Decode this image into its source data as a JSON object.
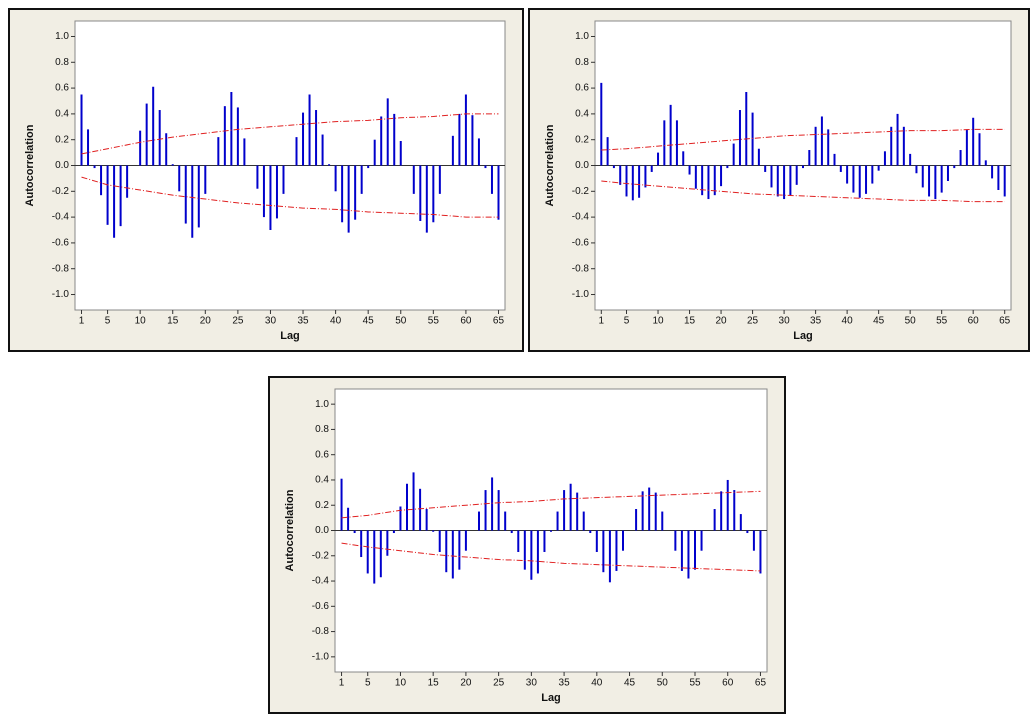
{
  "chart_data": [
    {
      "type": "acf",
      "x_label": "Lag",
      "y_label": "Autocorrelation",
      "color": "#0000cc",
      "limit_color": "#e02020",
      "x": [
        1,
        2,
        3,
        4,
        5,
        6,
        7,
        8,
        9,
        10,
        11,
        12,
        13,
        14,
        15,
        16,
        17,
        18,
        19,
        20,
        21,
        22,
        23,
        24,
        25,
        26,
        27,
        28,
        29,
        30,
        31,
        32,
        33,
        34,
        35,
        36,
        37,
        38,
        39,
        40,
        41,
        42,
        43,
        44,
        45,
        46,
        47,
        48,
        49,
        50,
        51,
        52,
        53,
        54,
        55,
        56,
        57,
        58,
        59,
        60,
        61,
        62,
        63,
        64,
        65
      ],
      "values": [
        0.55,
        0.28,
        -0.02,
        -0.23,
        -0.46,
        -0.56,
        -0.47,
        -0.25,
        0.0,
        0.27,
        0.48,
        0.61,
        0.43,
        0.25,
        0.01,
        -0.2,
        -0.45,
        -0.56,
        -0.48,
        -0.22,
        0.0,
        0.22,
        0.46,
        0.57,
        0.45,
        0.21,
        0.0,
        -0.18,
        -0.4,
        -0.5,
        -0.41,
        -0.22,
        0.0,
        0.22,
        0.41,
        0.55,
        0.43,
        0.24,
        0.01,
        -0.2,
        -0.44,
        -0.52,
        -0.42,
        -0.22,
        -0.02,
        0.2,
        0.38,
        0.52,
        0.4,
        0.19,
        0.0,
        -0.22,
        -0.43,
        -0.52,
        -0.44,
        -0.22,
        0.0,
        0.23,
        0.4,
        0.55,
        0.39,
        0.21,
        -0.02,
        -0.22,
        -0.42
      ],
      "limit_lags": [
        1,
        5,
        10,
        15,
        20,
        25,
        30,
        35,
        40,
        45,
        50,
        55,
        60,
        65
      ],
      "upper_limit": [
        0.09,
        0.13,
        0.18,
        0.22,
        0.25,
        0.28,
        0.3,
        0.32,
        0.34,
        0.35,
        0.37,
        0.38,
        0.4,
        0.4
      ],
      "lower_limit": [
        -0.09,
        -0.15,
        -0.19,
        -0.23,
        -0.26,
        -0.29,
        -0.31,
        -0.33,
        -0.34,
        -0.36,
        -0.37,
        -0.38,
        -0.4,
        -0.4
      ],
      "xlim": [
        0,
        66
      ],
      "xticks": [
        1,
        5,
        10,
        15,
        20,
        25,
        30,
        35,
        40,
        45,
        50,
        55,
        60,
        65
      ],
      "ylim": [
        -1.12,
        1.12
      ],
      "yticks": [
        {
          "value": 1.0,
          "label": "1.0"
        },
        0.8,
        0.6,
        0.4,
        0.2,
        {
          "value": 0.0,
          "label": "0.0"
        },
        -0.2,
        -0.4,
        -0.6,
        -0.8,
        {
          "value": -1.0,
          "label": "-1.0"
        }
      ]
    },
    {
      "type": "acf",
      "x_label": "Lag",
      "y_label": "Autocorrelation",
      "color": "#0000cc",
      "limit_color": "#e02020",
      "x": [
        1,
        2,
        3,
        4,
        5,
        6,
        7,
        8,
        9,
        10,
        11,
        12,
        13,
        14,
        15,
        16,
        17,
        18,
        19,
        20,
        21,
        22,
        23,
        24,
        25,
        26,
        27,
        28,
        29,
        30,
        31,
        32,
        33,
        34,
        35,
        36,
        37,
        38,
        39,
        40,
        41,
        42,
        43,
        44,
        45,
        46,
        47,
        48,
        49,
        50,
        51,
        52,
        53,
        54,
        55,
        56,
        57,
        58,
        59,
        60,
        61,
        62,
        63,
        64,
        65
      ],
      "values": [
        0.64,
        0.22,
        -0.02,
        -0.15,
        -0.24,
        -0.27,
        -0.25,
        -0.17,
        -0.05,
        0.1,
        0.35,
        0.47,
        0.35,
        0.11,
        -0.07,
        -0.18,
        -0.23,
        -0.26,
        -0.23,
        -0.16,
        -0.02,
        0.17,
        0.43,
        0.57,
        0.41,
        0.13,
        -0.05,
        -0.17,
        -0.24,
        -0.26,
        -0.23,
        -0.15,
        -0.02,
        0.12,
        0.3,
        0.38,
        0.28,
        0.09,
        -0.05,
        -0.14,
        -0.21,
        -0.25,
        -0.22,
        -0.14,
        -0.04,
        0.11,
        0.3,
        0.4,
        0.3,
        0.09,
        -0.06,
        -0.17,
        -0.24,
        -0.26,
        -0.21,
        -0.12,
        -0.02,
        0.12,
        0.28,
        0.37,
        0.25,
        0.04,
        -0.1,
        -0.19,
        -0.24
      ],
      "limit_lags": [
        1,
        5,
        10,
        15,
        20,
        25,
        30,
        35,
        40,
        45,
        50,
        55,
        60,
        65
      ],
      "upper_limit": [
        0.12,
        0.13,
        0.15,
        0.17,
        0.19,
        0.21,
        0.23,
        0.24,
        0.25,
        0.26,
        0.27,
        0.27,
        0.28,
        0.28
      ],
      "lower_limit": [
        -0.12,
        -0.14,
        -0.16,
        -0.18,
        -0.2,
        -0.22,
        -0.23,
        -0.24,
        -0.25,
        -0.26,
        -0.27,
        -0.27,
        -0.28,
        -0.28
      ],
      "xlim": [
        0,
        66
      ],
      "xticks": [
        1,
        5,
        10,
        15,
        20,
        25,
        30,
        35,
        40,
        45,
        50,
        55,
        60,
        65
      ],
      "ylim": [
        -1.12,
        1.12
      ],
      "yticks": [
        {
          "value": 1.0,
          "label": "1.0"
        },
        0.8,
        0.6,
        0.4,
        0.2,
        {
          "value": 0.0,
          "label": "0.0"
        },
        -0.2,
        -0.4,
        -0.6,
        -0.8,
        {
          "value": -1.0,
          "label": "-1.0"
        }
      ]
    },
    {
      "type": "acf",
      "x_label": "Lag",
      "y_label": "Autocorrelation",
      "color": "#0000cc",
      "limit_color": "#e02020",
      "x": [
        1,
        2,
        3,
        4,
        5,
        6,
        7,
        8,
        9,
        10,
        11,
        12,
        13,
        14,
        15,
        16,
        17,
        18,
        19,
        20,
        21,
        22,
        23,
        24,
        25,
        26,
        27,
        28,
        29,
        30,
        31,
        32,
        33,
        34,
        35,
        36,
        37,
        38,
        39,
        40,
        41,
        42,
        43,
        44,
        45,
        46,
        47,
        48,
        49,
        50,
        51,
        52,
        53,
        54,
        55,
        56,
        57,
        58,
        59,
        60,
        61,
        62,
        63,
        64,
        65
      ],
      "values": [
        0.41,
        0.18,
        -0.02,
        -0.21,
        -0.34,
        -0.42,
        -0.37,
        -0.2,
        -0.02,
        0.19,
        0.37,
        0.46,
        0.33,
        0.17,
        -0.01,
        -0.17,
        -0.33,
        -0.38,
        -0.31,
        -0.16,
        0.0,
        0.15,
        0.32,
        0.42,
        0.32,
        0.15,
        -0.02,
        -0.17,
        -0.31,
        -0.39,
        -0.34,
        -0.17,
        -0.01,
        0.15,
        0.32,
        0.37,
        0.3,
        0.15,
        -0.02,
        -0.17,
        -0.33,
        -0.41,
        -0.32,
        -0.16,
        0.0,
        0.17,
        0.31,
        0.34,
        0.3,
        0.15,
        0.0,
        -0.16,
        -0.32,
        -0.38,
        -0.31,
        -0.16,
        0.0,
        0.17,
        0.31,
        0.4,
        0.32,
        0.13,
        -0.02,
        -0.16,
        -0.34
      ],
      "limit_lags": [
        1,
        5,
        10,
        15,
        20,
        25,
        30,
        35,
        40,
        45,
        50,
        55,
        60,
        65
      ],
      "upper_limit": [
        0.1,
        0.12,
        0.16,
        0.18,
        0.2,
        0.22,
        0.23,
        0.25,
        0.26,
        0.27,
        0.28,
        0.29,
        0.3,
        0.31
      ],
      "lower_limit": [
        -0.1,
        -0.13,
        -0.16,
        -0.19,
        -0.21,
        -0.23,
        -0.24,
        -0.26,
        -0.27,
        -0.28,
        -0.29,
        -0.3,
        -0.31,
        -0.32
      ],
      "xlim": [
        0,
        66
      ],
      "xticks": [
        1,
        5,
        10,
        15,
        20,
        25,
        30,
        35,
        40,
        45,
        50,
        55,
        60,
        65
      ],
      "ylim": [
        -1.12,
        1.12
      ],
      "yticks": [
        {
          "value": 1.0,
          "label": "1.0"
        },
        0.8,
        0.6,
        0.4,
        0.2,
        {
          "value": 0.0,
          "label": "0.0"
        },
        -0.2,
        -0.4,
        -0.6,
        -0.8,
        {
          "value": -1.0,
          "label": "-1.0"
        }
      ]
    }
  ]
}
